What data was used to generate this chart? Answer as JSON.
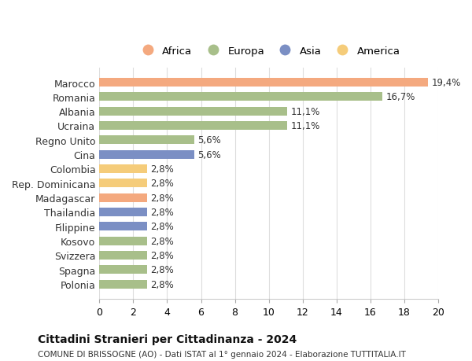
{
  "countries": [
    "Marocco",
    "Romania",
    "Albania",
    "Ucraina",
    "Regno Unito",
    "Cina",
    "Colombia",
    "Rep. Dominicana",
    "Madagascar",
    "Thailandia",
    "Filippine",
    "Kosovo",
    "Svizzera",
    "Spagna",
    "Polonia"
  ],
  "values": [
    19.4,
    16.7,
    11.1,
    11.1,
    5.6,
    5.6,
    2.8,
    2.8,
    2.8,
    2.8,
    2.8,
    2.8,
    2.8,
    2.8,
    2.8
  ],
  "labels": [
    "19,4%",
    "16,7%",
    "11,1%",
    "11,1%",
    "5,6%",
    "5,6%",
    "2,8%",
    "2,8%",
    "2,8%",
    "2,8%",
    "2,8%",
    "2,8%",
    "2,8%",
    "2,8%",
    "2,8%"
  ],
  "colors": [
    "#F4A97F",
    "#A8BF8A",
    "#A8BF8A",
    "#A8BF8A",
    "#A8BF8A",
    "#7B8FC4",
    "#F5CC7A",
    "#F5CC7A",
    "#F4A97F",
    "#7B8FC4",
    "#7B8FC4",
    "#A8BF8A",
    "#A8BF8A",
    "#A8BF8A",
    "#A8BF8A"
  ],
  "continent_colors": {
    "Africa": "#F4A97F",
    "Europa": "#A8BF8A",
    "Asia": "#7B8FC4",
    "America": "#F5CC7A"
  },
  "legend_order": [
    "Africa",
    "Europa",
    "Asia",
    "America"
  ],
  "title": "Cittadini Stranieri per Cittadinanza - 2024",
  "subtitle": "COMUNE DI BRISSOGNE (AO) - Dati ISTAT al 1° gennaio 2024 - Elaborazione TUTTITALIA.IT",
  "xlim": [
    0,
    20
  ],
  "xticks": [
    0,
    2,
    4,
    6,
    8,
    10,
    12,
    14,
    16,
    18,
    20
  ],
  "background_color": "#ffffff",
  "grid_color": "#dddddd",
  "bar_height": 0.6
}
